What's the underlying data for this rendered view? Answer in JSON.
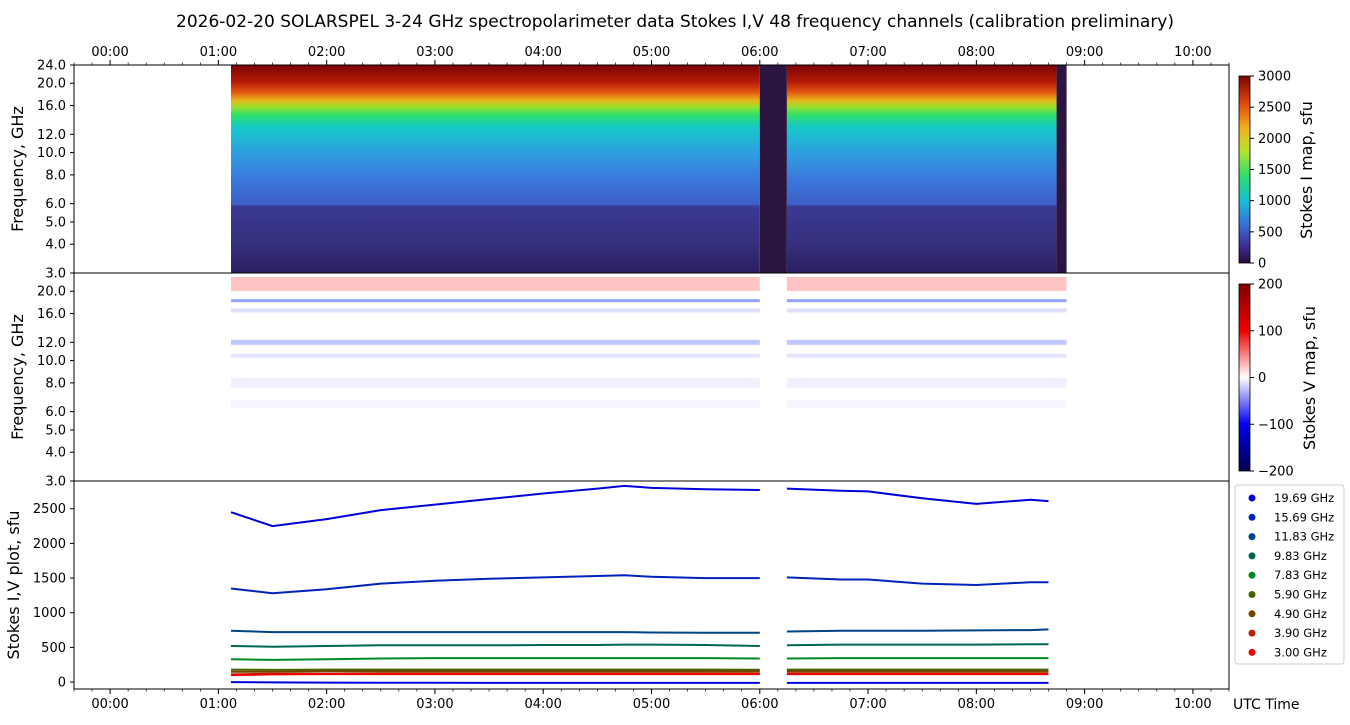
{
  "figure": {
    "title": "2026-02-20  SOLARSPEL  3-24 GHz spectropolarimeter data   Stokes I,V   48 frequency channels   (calibration preliminary)",
    "xlabel": "UTC Time"
  },
  "chart_data": [
    {
      "type": "heatmap",
      "name": "stokes-i-map",
      "ylabel": "Frequency, GHz",
      "x_ticks": [
        "00:00",
        "01:00",
        "02:00",
        "03:00",
        "04:00",
        "05:00",
        "06:00",
        "07:00",
        "08:00",
        "09:00",
        "10:00"
      ],
      "y_ticks": [
        "3.0",
        "4.0",
        "5.0",
        "6.0",
        "8.0",
        "10.0",
        "12.0",
        "16.0",
        "20.0",
        "24.0"
      ],
      "xlim": [
        "23:40",
        "10:20"
      ],
      "ylim": [
        3.0,
        24.0
      ],
      "data_window": [
        "01:07",
        "08:50"
      ],
      "gap": [
        "06:00",
        "06:15"
      ],
      "colorbar": {
        "label": "Stokes I map, sfu",
        "ticks": [
          "0",
          "500",
          "1000",
          "1500",
          "2000",
          "2500",
          "3000"
        ],
        "range": [
          0,
          3000
        ],
        "colormap": "rainbow (dark purple → blue → cyan → green → yellow → red → dark red)"
      }
    },
    {
      "type": "heatmap",
      "name": "stokes-v-map",
      "ylabel": "Frequency, GHz",
      "x_ticks": [
        "00:00",
        "01:00",
        "02:00",
        "03:00",
        "04:00",
        "05:00",
        "06:00",
        "07:00",
        "08:00",
        "09:00",
        "10:00"
      ],
      "y_ticks": [
        "3.0",
        "4.0",
        "5.0",
        "6.0",
        "8.0",
        "10.0",
        "12.0",
        "16.0",
        "20.0"
      ],
      "ylim": [
        3.0,
        24.0
      ],
      "colorbar": {
        "label": "Stokes V map, sfu",
        "ticks": [
          "−200",
          "−100",
          "0",
          "100",
          "200"
        ],
        "range": [
          -200,
          200
        ],
        "colormap": "seismic (dark blue → white → dark red)"
      }
    },
    {
      "type": "scatter",
      "name": "stokes-iv-plot",
      "ylabel": "Stokes I,V plot, sfu",
      "y_ticks": [
        "0",
        "500",
        "1000",
        "1500",
        "2000",
        "2500"
      ],
      "ylim": [
        -100,
        2900
      ],
      "x_ticks": [
        "00:00",
        "01:00",
        "02:00",
        "03:00",
        "04:00",
        "05:00",
        "06:00",
        "07:00",
        "08:00",
        "09:00",
        "10:00"
      ],
      "x": [
        "01:07",
        "01:30",
        "02:00",
        "02:30",
        "03:00",
        "03:30",
        "04:00",
        "04:30",
        "04:45",
        "05:00",
        "05:30",
        "06:00",
        "06:15",
        "06:45",
        "07:00",
        "07:30",
        "08:00",
        "08:30",
        "08:40"
      ],
      "series": [
        {
          "name": "19.69 GHz",
          "color": "#0000dd",
          "values": [
            2450,
            2250,
            2350,
            2480,
            2560,
            2640,
            2720,
            2790,
            2830,
            2800,
            2780,
            2770,
            2790,
            2760,
            2750,
            2650,
            2570,
            2630,
            2610
          ]
        },
        {
          "name": "15.69 GHz",
          "color": "#0022bb",
          "values": [
            1350,
            1280,
            1340,
            1420,
            1460,
            1490,
            1510,
            1530,
            1540,
            1520,
            1500,
            1500,
            1510,
            1480,
            1480,
            1420,
            1400,
            1440,
            1440
          ]
        },
        {
          "name": "11.83 GHz",
          "color": "#004488",
          "values": [
            740,
            720,
            720,
            720,
            720,
            720,
            720,
            720,
            720,
            715,
            710,
            710,
            730,
            740,
            740,
            740,
            745,
            750,
            760
          ]
        },
        {
          "name": "9.83 GHz",
          "color": "#006655",
          "values": [
            520,
            510,
            520,
            530,
            530,
            530,
            535,
            535,
            540,
            540,
            535,
            520,
            530,
            540,
            540,
            540,
            540,
            545,
            545
          ]
        },
        {
          "name": "7.83 GHz",
          "color": "#008822",
          "values": [
            330,
            320,
            330,
            340,
            345,
            345,
            345,
            345,
            345,
            345,
            345,
            340,
            340,
            345,
            345,
            345,
            345,
            345,
            345
          ]
        },
        {
          "name": "5.90 GHz",
          "color": "#446600",
          "values": [
            180,
            175,
            180,
            180,
            180,
            180,
            180,
            180,
            180,
            180,
            180,
            178,
            180,
            180,
            180,
            180,
            180,
            180,
            180
          ]
        },
        {
          "name": "4.90 GHz",
          "color": "#774400",
          "values": [
            150,
            150,
            155,
            155,
            155,
            155,
            155,
            155,
            155,
            155,
            155,
            155,
            155,
            155,
            155,
            155,
            155,
            155,
            155
          ]
        },
        {
          "name": "3.90 GHz",
          "color": "#bb2200",
          "values": [
            110,
            120,
            120,
            125,
            125,
            125,
            125,
            125,
            125,
            125,
            125,
            125,
            125,
            125,
            125,
            125,
            125,
            125,
            125
          ]
        },
        {
          "name": "3.00 GHz",
          "color": "#ee0000",
          "values": [
            100,
            110,
            115,
            115,
            115,
            115,
            115,
            115,
            115,
            115,
            115,
            115,
            115,
            115,
            115,
            115,
            115,
            115,
            115
          ]
        }
      ],
      "v_series": {
        "color": "#0000dd",
        "values": [
          0,
          -5,
          -8,
          -10,
          -10,
          -12,
          -12,
          -12,
          -12,
          -12,
          -12,
          -12,
          -12,
          -12,
          -12,
          -12,
          -12,
          -12,
          -12
        ]
      },
      "legend_position": "right"
    }
  ]
}
